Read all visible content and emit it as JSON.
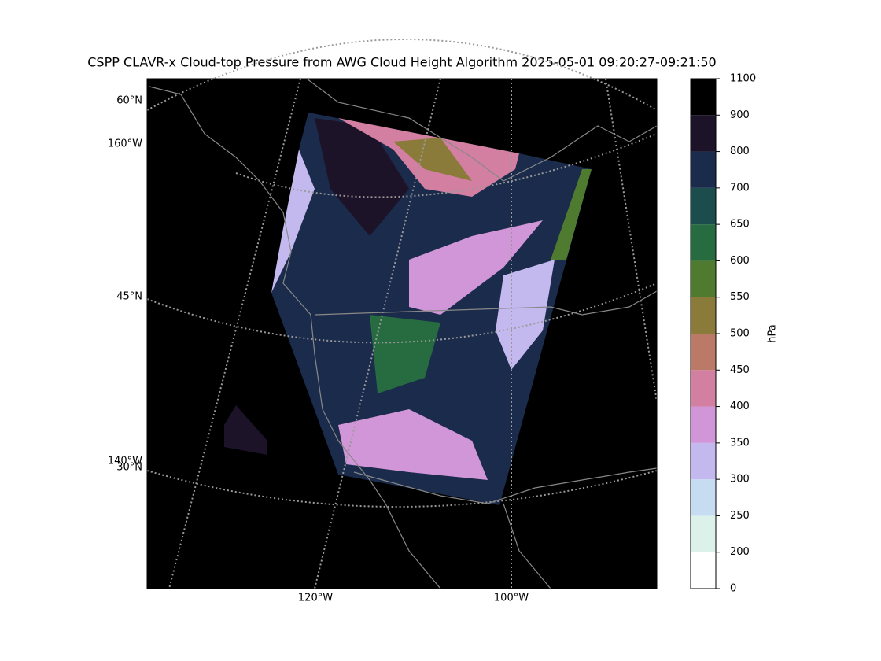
{
  "title": "CSPP CLAVR-x Cloud-top Pressure from AWG Cloud Height Algorithm 2025-05-01 09:20:27-09:21:50",
  "map": {
    "lat_labels": [
      "60°N",
      "45°N",
      "30°N"
    ],
    "lon_labels": [
      "160°W",
      "140°W",
      "120°W",
      "100°W"
    ]
  },
  "colorbar": {
    "label": "hPa",
    "ticks": [
      0,
      200,
      250,
      300,
      350,
      400,
      450,
      500,
      550,
      600,
      650,
      700,
      800,
      900,
      1100
    ],
    "colors": [
      "#ffffff",
      "#dcf1ea",
      "#c6dcf0",
      "#c3b9ef",
      "#d196d8",
      "#d27fa2",
      "#bb7a68",
      "#8a7b3a",
      "#4f7b31",
      "#276c40",
      "#1a4d4b",
      "#1b2b4b",
      "#1d1329",
      "#000000"
    ]
  }
}
